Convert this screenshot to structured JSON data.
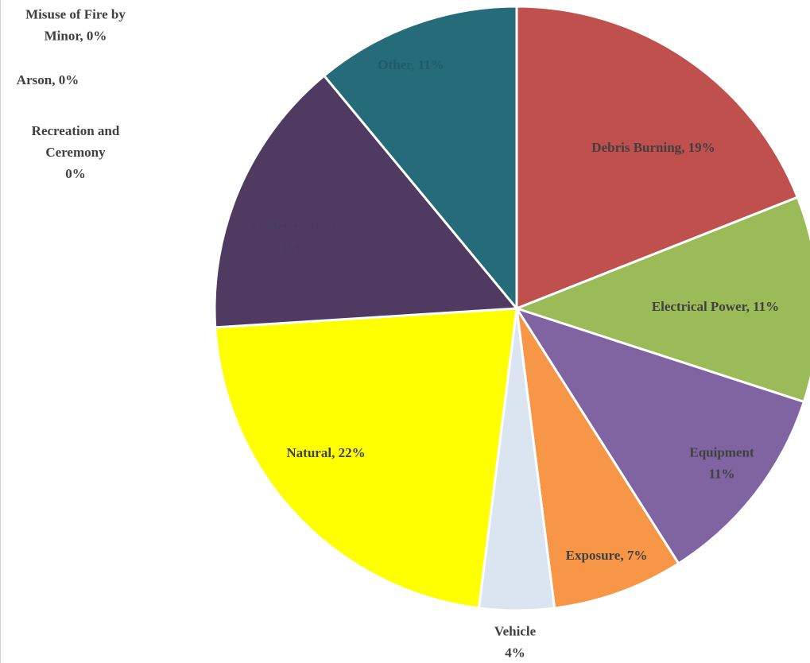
{
  "chart_data": {
    "type": "pie",
    "values": [
      19,
      11,
      11,
      7,
      4,
      22,
      15,
      11,
      0,
      0,
      0
    ],
    "value_labels": [
      [
        "Debris Burning, 19%"
      ],
      [
        "Electrical Power, 11%"
      ],
      [
        "Equipment",
        "11%"
      ],
      [
        "Exposure, 7%"
      ],
      [
        "Vehicle",
        "4%"
      ],
      [
        "Natural, 22%"
      ],
      [
        "Undetermined",
        "15%"
      ],
      [
        "Other, 11%"
      ],
      [
        "Misuse of Fire by",
        "Minor, 0%"
      ],
      [
        "Arson, 0%"
      ],
      [
        "Recreation and",
        "Ceremony",
        "0%"
      ]
    ],
    "colors": [
      "#c0504d",
      "#9bbb59",
      "#8064a2",
      "#f79646",
      "#dbe5f1",
      "#ffff00",
      "#4f3a62",
      "#256b7a",
      "#4bacc6",
      "#c0504d",
      "#9bbb59"
    ],
    "label_colors": [
      "#404040",
      "#404040",
      "#404040",
      "#404040",
      "#404040",
      "#404040",
      "#4a3a5e",
      "#1f5c6a",
      "#404040",
      "#404040",
      "#404040"
    ]
  }
}
